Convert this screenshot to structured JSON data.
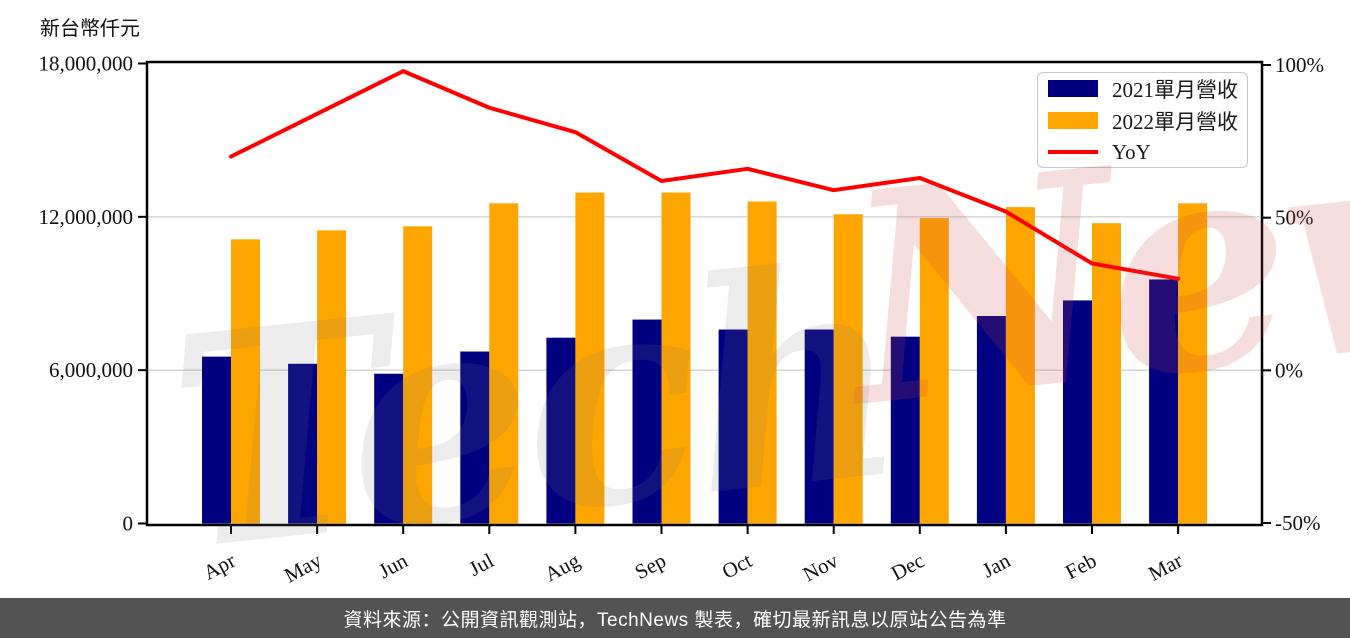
{
  "header": {
    "unit_label": "新台幣仟元"
  },
  "watermark": {
    "part1": "Tech",
    "part2": "News"
  },
  "footer": {
    "text": "資料來源：公開資訊觀測站，TechNews 製表，確切最新訊息以原站公告為準",
    "background": "#535353",
    "text_color": "#ffffff"
  },
  "chart_data": {
    "type": "bar",
    "title": "",
    "categories": [
      "Apr",
      "May",
      "Jun",
      "Jul",
      "Aug",
      "Sep",
      "Oct",
      "Nov",
      "Dec",
      "Jan",
      "Feb",
      "Mar"
    ],
    "series": [
      {
        "name": "2021單月營收",
        "type": "bar",
        "color": "#000080",
        "axis": "left",
        "values": [
          6530000,
          6250000,
          5860000,
          6730000,
          7270000,
          7980000,
          7590000,
          7590000,
          7310000,
          8120000,
          8730000,
          9550000
        ]
      },
      {
        "name": "2022單月營收",
        "type": "bar",
        "color": "#FFA500",
        "axis": "left",
        "values": [
          11120000,
          11470000,
          11630000,
          12530000,
          12950000,
          12950000,
          12600000,
          12100000,
          11950000,
          12380000,
          11750000,
          12530000
        ]
      },
      {
        "name": "YoY",
        "type": "line",
        "color": "#FF0000",
        "axis": "right",
        "values": [
          70,
          84,
          98,
          86,
          78,
          62,
          66,
          59,
          63,
          52,
          35,
          30
        ]
      }
    ],
    "left_axis": {
      "label": "新台幣仟元",
      "unit": "仟元 (NTD thousands)",
      "range": [
        0,
        18000000
      ],
      "ticks": [
        0,
        6000000,
        12000000,
        18000000
      ],
      "tick_labels": [
        "0",
        "6,000,000",
        "12,000,000",
        "18,000,000"
      ]
    },
    "right_axis": {
      "range": [
        -50,
        100
      ],
      "ticks": [
        -50,
        0,
        50,
        100
      ],
      "tick_labels": [
        "-50%",
        "0%",
        "50%",
        "100%"
      ]
    },
    "grid": "horizontal",
    "grid_color": "#d9d9d9",
    "legend_position": "top-right",
    "xlabel": "",
    "ylabel": "新台幣仟元"
  }
}
